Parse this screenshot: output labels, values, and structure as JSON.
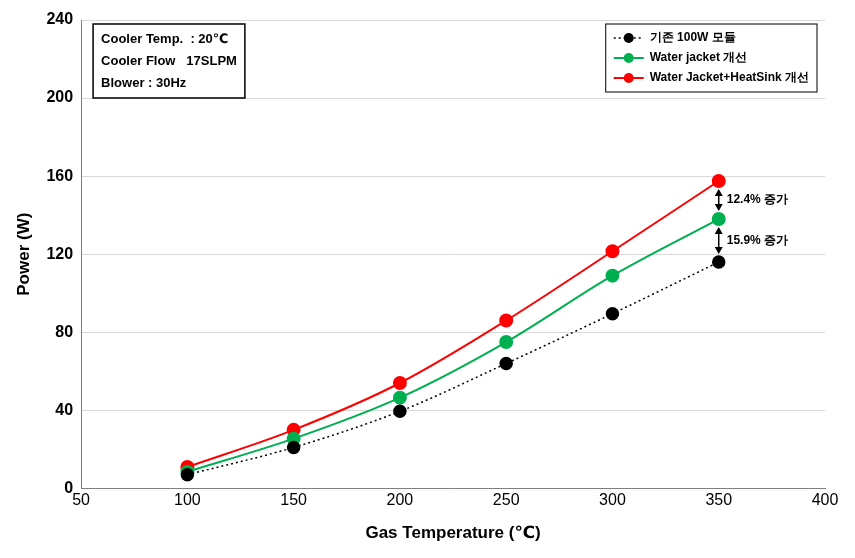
{
  "chart_data": {
    "type": "line",
    "x_label": "Gas Temperature (℃)",
    "y_label": "Power (W)",
    "x": [
      100,
      150,
      200,
      250,
      300,
      350
    ],
    "series": [
      {
        "name": "기존 100W 모듈",
        "color": "#000000",
        "marker": "circle",
        "line_style": "dotted",
        "values": [
          7,
          21,
          39.5,
          64,
          89.5,
          116
        ]
      },
      {
        "name": "Water jacket 개선",
        "color": "#00b050",
        "marker": "circle",
        "line_style": "solid",
        "values": [
          8.5,
          25.5,
          46.5,
          75,
          109,
          138
        ]
      },
      {
        "name": "Water Jacket+HeatSink 개선",
        "color": "#ff0000",
        "marker": "circle",
        "line_style": "solid",
        "values": [
          11,
          30,
          54,
          86,
          121.5,
          157.5
        ]
      }
    ],
    "xlim": [
      50,
      400
    ],
    "xticks": [
      50,
      100,
      150,
      200,
      250,
      300,
      350,
      400
    ],
    "ylim": [
      0,
      240
    ],
    "yticks": [
      0,
      40,
      80,
      120,
      160,
      200,
      240
    ],
    "grid": true,
    "legend": "upper right",
    "annotations": [
      {
        "text": [
          "Cooler Temp.  : 20℃",
          "Cooler Flow   17SLPM",
          "Blower : 30Hz"
        ]
      },
      {
        "text": "12.4% 증가",
        "x": 350,
        "between": [
          "Water Jacket+HeatSink 개선",
          "Water jacket 개선"
        ]
      },
      {
        "text": "15.9% 증가",
        "x": 350,
        "between": [
          "Water jacket 개선",
          "기존 100W 모듈"
        ]
      }
    ]
  }
}
